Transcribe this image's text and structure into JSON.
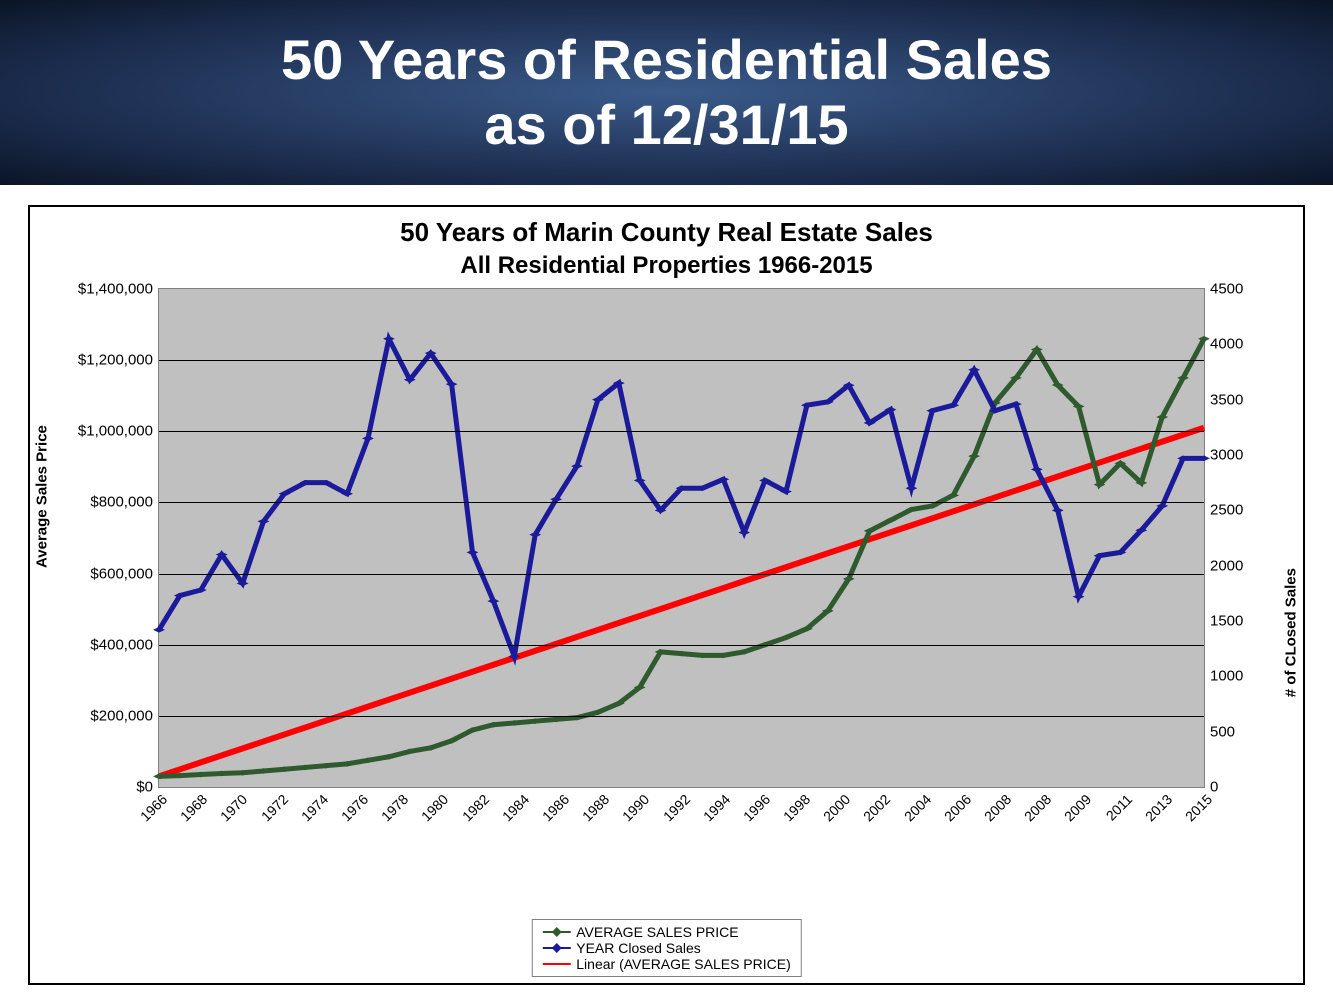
{
  "header": {
    "line1": "50 Years of Residential Sales",
    "line2": "as of 12/31/15",
    "fontsize": 56,
    "color": "#ffffff"
  },
  "chart": {
    "type": "line",
    "title_line1": "50 Years of Marin County Real Estate Sales",
    "title_line2": "All Residential Properties 1966-2015",
    "title_fontsize": 26,
    "subtitle_fontsize": 24,
    "plot_background": "#c0c0c0",
    "grid_color": "#000000",
    "axis_label_left": "Average Sales Price",
    "axis_label_right": "# of CLosed Sales",
    "axis_label_fontsize": 15,
    "y_left": {
      "min": 0,
      "max": 1400000,
      "ticks": [
        0,
        200000,
        400000,
        600000,
        800000,
        1000000,
        1200000,
        1400000
      ],
      "labels": [
        "$0",
        "$200,000",
        "$400,000",
        "$600,000",
        "$800,000",
        "$1,000,000",
        "$1,200,000",
        "$1,400,000"
      ]
    },
    "y_right": {
      "min": 0,
      "max": 4500,
      "ticks": [
        0,
        500,
        1000,
        1500,
        2000,
        2500,
        3000,
        3500,
        4000,
        4500
      ],
      "labels": [
        "0",
        "500",
        "1000",
        "1500",
        "2000",
        "2500",
        "3000",
        "3500",
        "4000",
        "4500"
      ]
    },
    "x": {
      "labels": [
        "1966",
        "1968",
        "1970",
        "1972",
        "1974",
        "1976",
        "1978",
        "1980",
        "1982",
        "1984",
        "1986",
        "1988",
        "1990",
        "1992",
        "1994",
        "1996",
        "1998",
        "2000",
        "2002",
        "2004",
        "2006",
        "2008",
        "2008",
        "2009",
        "2011",
        "2013",
        "2015"
      ]
    },
    "series": {
      "avg_price": {
        "name": "AVERAGE  SALES PRICE",
        "color": "#2e5a2e",
        "axis": "left",
        "marker": "diamond",
        "line_width": 2.5,
        "values": [
          30000,
          32000,
          35000,
          38000,
          40000,
          45000,
          50000,
          55000,
          60000,
          65000,
          75000,
          85000,
          100000,
          110000,
          130000,
          160000,
          175000,
          180000,
          185000,
          190000,
          195000,
          210000,
          235000,
          280000,
          380000,
          375000,
          370000,
          370000,
          380000,
          400000,
          420000,
          445000,
          495000,
          585000,
          720000,
          750000,
          780000,
          790000,
          820000,
          930000,
          1080000,
          1150000,
          1230000,
          1130000,
          1070000,
          850000,
          910000,
          855000,
          1040000,
          1150000,
          1260000
        ]
      },
      "closed_sales": {
        "name": "YEAR Closed Sales",
        "color": "#1a1a9a",
        "axis": "right",
        "marker": "diamond",
        "line_width": 2.5,
        "values": [
          1420,
          1730,
          1780,
          2100,
          1840,
          2400,
          2650,
          2750,
          2750,
          2650,
          3150,
          4050,
          3680,
          3920,
          3640,
          2120,
          1680,
          1180,
          2280,
          2600,
          2900,
          3500,
          3650,
          2770,
          2500,
          2700,
          2700,
          2780,
          2300,
          2770,
          2670,
          3450,
          3480,
          3630,
          3290,
          3410,
          2700,
          3400,
          3450,
          3770,
          3400,
          3460,
          2870,
          2500,
          1720,
          2090,
          2120,
          2320,
          2540,
          2970,
          2970
        ]
      },
      "linear_trend": {
        "name": "Linear (AVERAGE  SALES PRICE)",
        "color": "#ff0000",
        "axis": "left",
        "marker": "none",
        "line_width": 3,
        "start": 30000,
        "end": 1010000
      }
    },
    "legend": {
      "items": [
        {
          "label": "AVERAGE  SALES PRICE",
          "color": "#2e5a2e",
          "marker": true
        },
        {
          "label": "YEAR Closed Sales",
          "color": "#1a1a9a",
          "marker": true
        },
        {
          "label": "Linear (AVERAGE  SALES PRICE)",
          "color": "#ff0000",
          "marker": false
        }
      ]
    }
  }
}
